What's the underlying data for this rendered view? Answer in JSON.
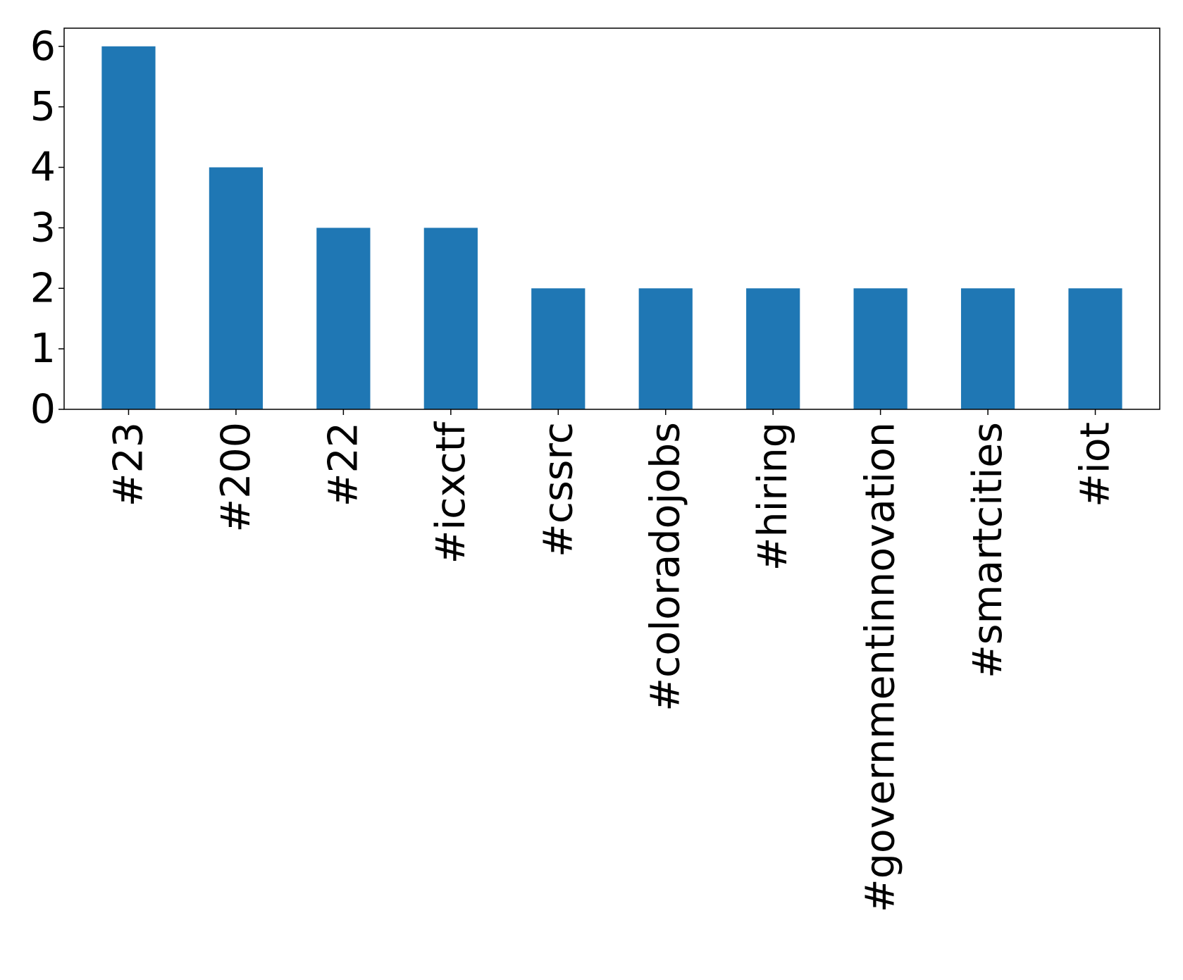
{
  "chart_data": {
    "type": "bar",
    "title": "",
    "xlabel": "",
    "ylabel": "",
    "categories": [
      "#23",
      "#200",
      "#22",
      "#icxctf",
      "#cssrc",
      "#coloradojobs",
      "#hiring",
      "#governmentinnovation",
      "#smartcities",
      "#iot"
    ],
    "values": [
      6,
      4,
      3,
      3,
      2,
      2,
      2,
      2,
      2,
      2
    ],
    "ylim": [
      0,
      6.3
    ],
    "yticks": [
      "0",
      "1",
      "2",
      "3",
      "4",
      "5",
      "6"
    ],
    "grid": false,
    "legend": "none",
    "bar_color": "#1f77b4",
    "x_tick_rotation": "vertical"
  }
}
